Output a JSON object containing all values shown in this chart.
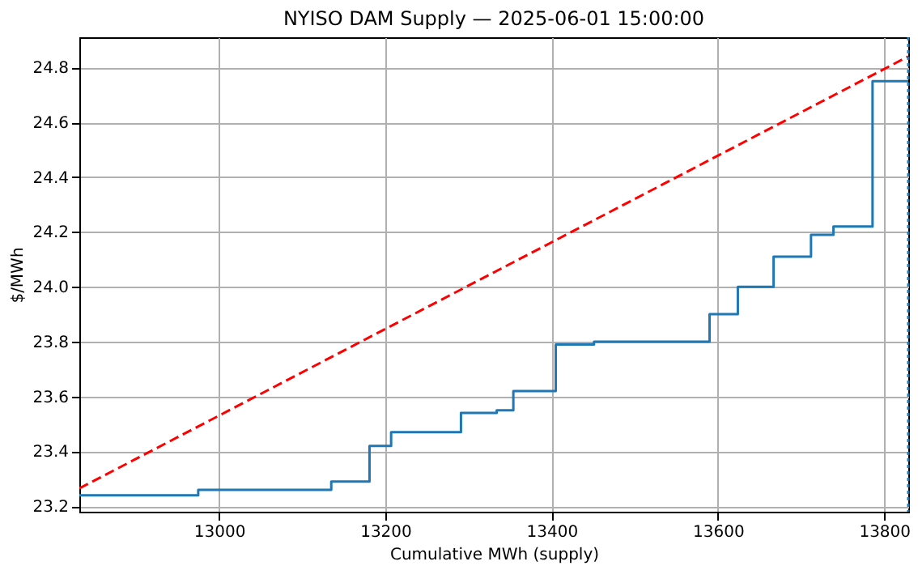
{
  "chart_data": {
    "type": "step",
    "title": "NYISO DAM Supply — 2025-06-01 15:00:00",
    "xlabel": "Cumulative MWh (supply)",
    "ylabel": "$/MWh",
    "series": [
      {
        "type": "step",
        "color": "#1f77b4",
        "line_style": "solid",
        "x": [
          12832,
          12975,
          13135,
          13181,
          13207,
          13291,
          13334,
          13354,
          13405,
          13451,
          13590,
          13624,
          13667,
          13712,
          13739,
          13786,
          13829
        ],
        "values": [
          23.24,
          23.26,
          23.29,
          23.42,
          23.47,
          23.54,
          23.55,
          23.62,
          23.79,
          23.8,
          23.9,
          24.0,
          24.11,
          24.19,
          24.22,
          24.75,
          24.75
        ]
      },
      {
        "type": "line",
        "color": "#ff0000",
        "line_style": "dashed",
        "x": [
          12832,
          13829
        ],
        "values": [
          23.265,
          24.84
        ]
      }
    ],
    "ref_lines": [
      {
        "axis": "x",
        "value": 13829,
        "label": null,
        "color": "#1f77b4",
        "line_style": "dotted"
      }
    ],
    "xlim": [
      12832,
      13829
    ],
    "ylim": [
      23.18,
      24.91
    ],
    "xticks": [
      13000,
      13200,
      13400,
      13600,
      13800
    ],
    "yticks": [
      23.2,
      23.4,
      23.6,
      23.8,
      {
        "value": 24,
        "label": "24.0"
      },
      24.2,
      24.4,
      24.6,
      24.8
    ],
    "grid": true,
    "legend": false,
    "marker": "none"
  }
}
